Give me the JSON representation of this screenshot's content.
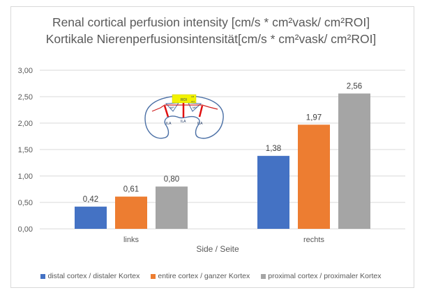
{
  "chart_data": {
    "type": "bar",
    "title": "Renal cortical perfusion intensity [cm/s * cm²vask/ cm²ROI]",
    "subtitle": "Kortikale Nierenperfusionsintensität[cm/s * cm²vask/ cm²ROI]",
    "xlabel": "Side / Seite",
    "ylabel": "",
    "categories": [
      "links",
      "rechts"
    ],
    "series": [
      {
        "name": "distal cortex / distaler Kortex",
        "color": "#4472c4",
        "values": [
          0.42,
          1.38
        ],
        "labels": [
          "0,42",
          "1,38"
        ]
      },
      {
        "name": "entire cortex / ganzer Kortex",
        "color": "#ed7d31",
        "values": [
          0.61,
          1.97
        ],
        "labels": [
          "0,61",
          "1,97"
        ]
      },
      {
        "name": "proximal cortex / proximaler Kortex",
        "color": "#a5a5a5",
        "values": [
          0.8,
          2.56
        ],
        "labels": [
          "0,80",
          "2,56"
        ]
      }
    ],
    "ylim": [
      0,
      3
    ],
    "yticks": [
      0,
      0.5,
      1,
      1.5,
      2,
      2.5,
      3
    ],
    "ytick_labels": [
      "0,00",
      "0,50",
      "1,00",
      "1,50",
      "2,00",
      "2,50",
      "3,00"
    ],
    "grid": true,
    "legend_position": "bottom",
    "inset_diagram": {
      "description": "kidney schematic",
      "labels": {
        "roi": "ROI",
        "mp": "MP",
        "ila": "ILA",
        "lm": "LM",
        "zlt": "ZLT"
      }
    }
  }
}
